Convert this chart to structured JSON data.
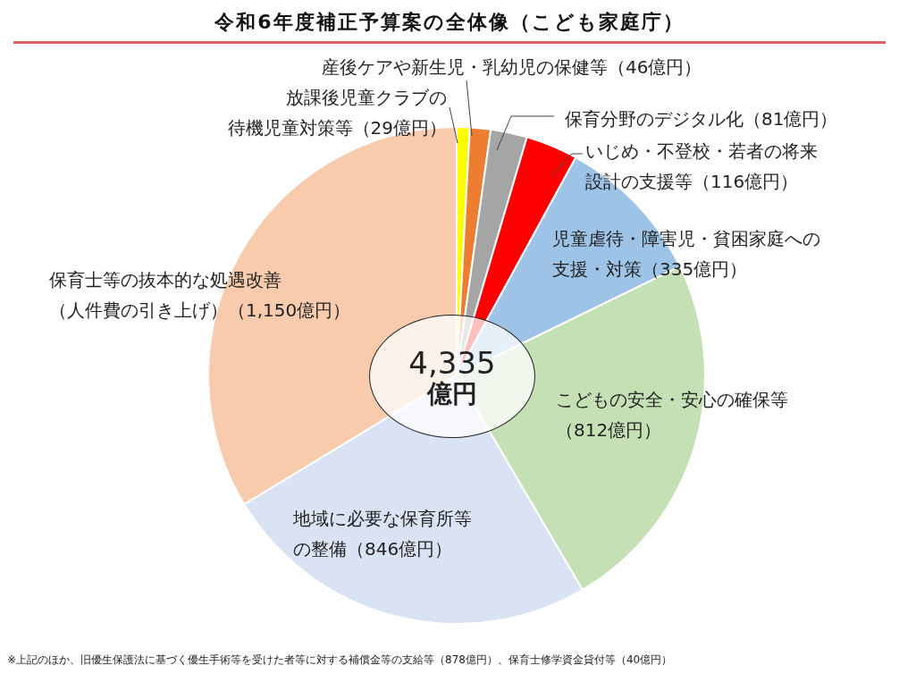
{
  "chart_data": {
    "type": "pie",
    "title": "令和6年度補正予算案の全体像（こども家庭庁）",
    "categories": [
      "放課後児童クラブの待機児童対策等",
      "産後ケアや新生児・乳幼児の保健等",
      "保育分野のデジタル化",
      "いじめ・不登校・若者の将来設計の支援等",
      "児童虐待・障害児・貧困家庭への支援・対策",
      "こどもの安全・安心の確保等",
      "地域に必要な保育所等の整備",
      "保育士等の抜本的な処遇改善（人件費の引き上げ）"
    ],
    "values": [
      29,
      46,
      81,
      116,
      335,
      812,
      846,
      1150
    ],
    "value_labels": [
      "（29億円）",
      "（46億円）",
      "（81億円）",
      "（116億円）",
      "（335億円）",
      "（812億円）",
      "（846億円）",
      "（1,150億円）"
    ],
    "colors": [
      "#ffff00",
      "#ed7d31",
      "#a5a5a5",
      "#ff0000",
      "#9dc3e6",
      "#c5e0b4",
      "#dae3f3",
      "#f8cbad"
    ],
    "annotations": [
      "4,335 億円",
      "※上記のほか、旧優生保護法に基づく優生手術等を受けた者等に対する補償金等の支給等（878億円）、保育士修学資金貸付等（40億円）"
    ]
  }
}
